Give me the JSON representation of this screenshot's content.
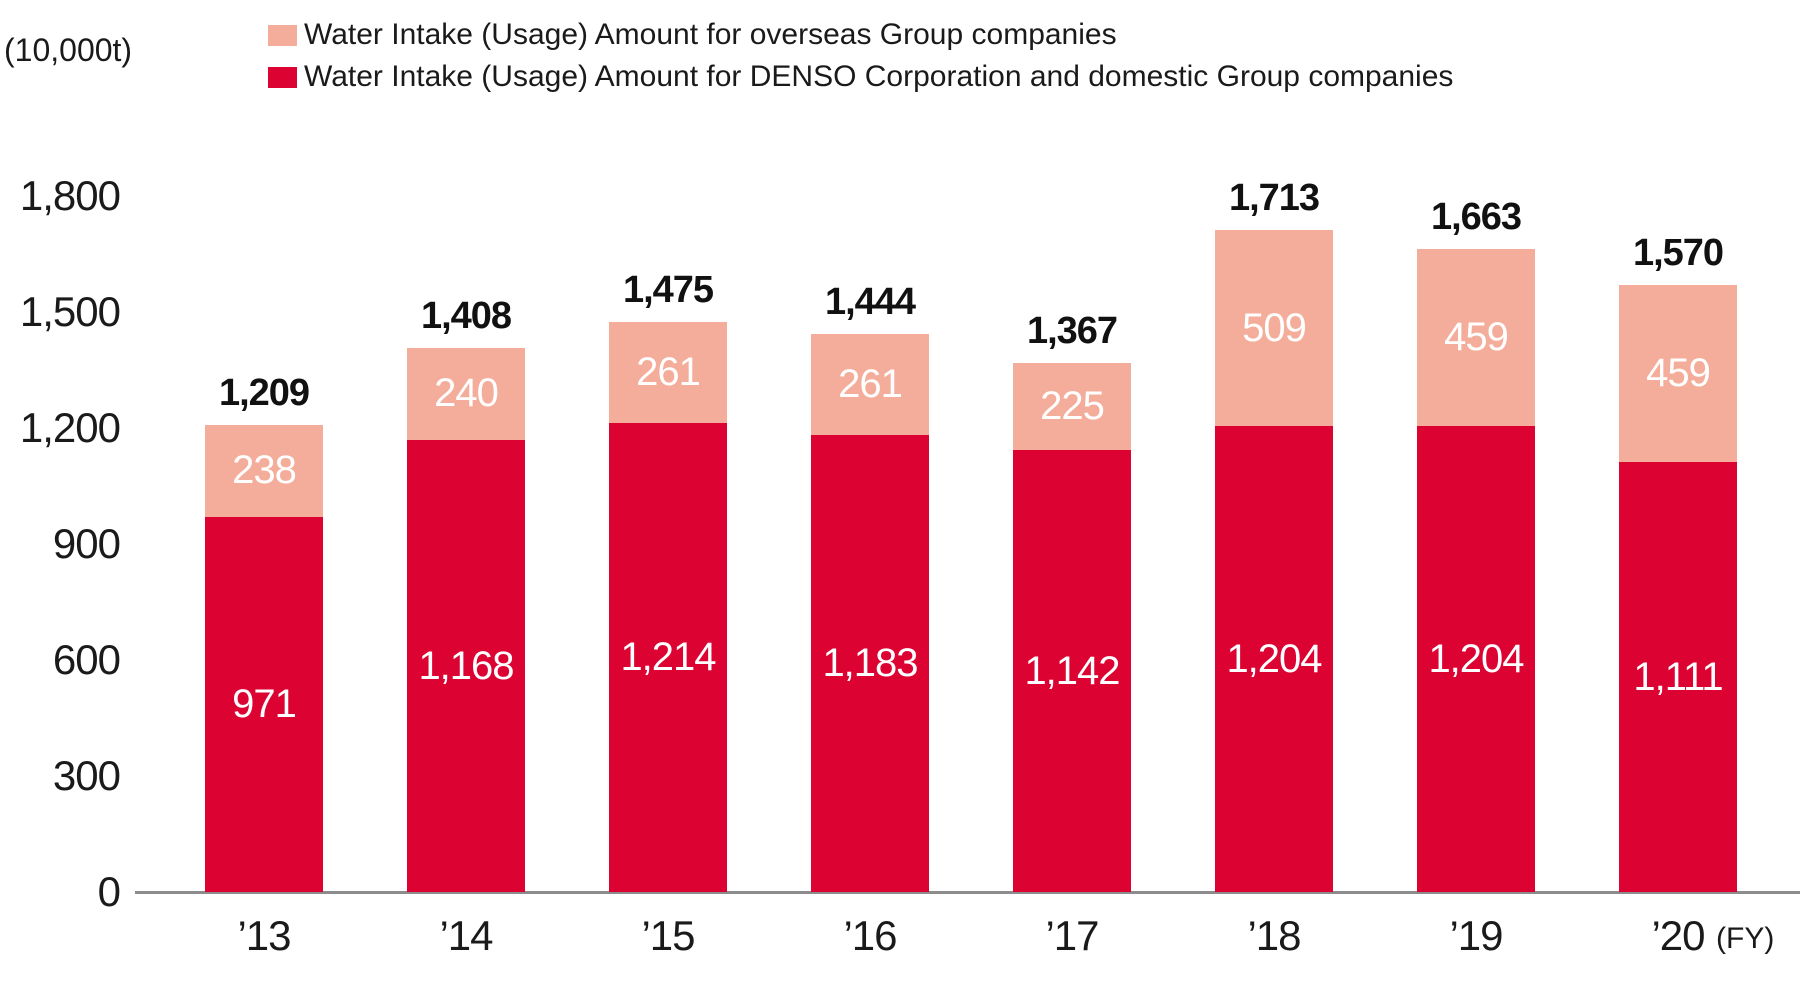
{
  "unit_label": "(10,000t)",
  "fy_label": "(FY)",
  "legend": [
    {
      "label": "Water Intake (Usage) Amount for overseas Group companies",
      "color": "#F4AD9A"
    },
    {
      "label": "Water Intake (Usage) Amount for DENSO Corporation and domestic Group companies",
      "color": "#DC0232"
    }
  ],
  "colors": {
    "overseas": "#F4AD9A",
    "domestic": "#DC0232",
    "axis_line": "#8C8C8C",
    "total_text": "#111111",
    "bar_value_text": "#FFFFFF",
    "tick_text": "#1A1A1A",
    "background": "#FFFFFF"
  },
  "y_axis": {
    "ticks": [
      {
        "value": 1800,
        "label": "1,800"
      },
      {
        "value": 1500,
        "label": "1,500"
      },
      {
        "value": 1200,
        "label": "1,200"
      },
      {
        "value": 900,
        "label": "900"
      },
      {
        "value": 600,
        "label": "600"
      },
      {
        "value": 300,
        "label": "300"
      },
      {
        "value": 0,
        "label": "0"
      }
    ]
  },
  "chart_data": {
    "type": "bar",
    "stacked": true,
    "title": "",
    "xlabel": "(FY)",
    "ylabel": "(10,000t)",
    "ylim": [
      0,
      1800
    ],
    "grid": false,
    "legend_position": "top",
    "categories": [
      "’13",
      "’14",
      "’15",
      "’16",
      "’17",
      "’18",
      "’19",
      "’20"
    ],
    "series": [
      {
        "name": "Water Intake (Usage) Amount for DENSO Corporation and domestic Group companies",
        "color": "#DC0232",
        "values": [
          971,
          1168,
          1214,
          1183,
          1142,
          1204,
          1204,
          1111
        ],
        "labels": [
          "971",
          "1,168",
          "1,214",
          "1,183",
          "1,142",
          "1,204",
          "1,204",
          "1,111"
        ]
      },
      {
        "name": "Water Intake (Usage) Amount for overseas Group companies",
        "color": "#F4AD9A",
        "values": [
          238,
          240,
          261,
          261,
          225,
          509,
          459,
          459
        ],
        "labels": [
          "238",
          "240",
          "261",
          "261",
          "225",
          "509",
          "459",
          "459"
        ]
      }
    ],
    "totals": [
      1209,
      1408,
      1475,
      1444,
      1367,
      1713,
      1663,
      1570
    ],
    "total_labels": [
      "1,209",
      "1,408",
      "1,475",
      "1,444",
      "1,367",
      "1,713",
      "1,663",
      "1,570"
    ]
  }
}
